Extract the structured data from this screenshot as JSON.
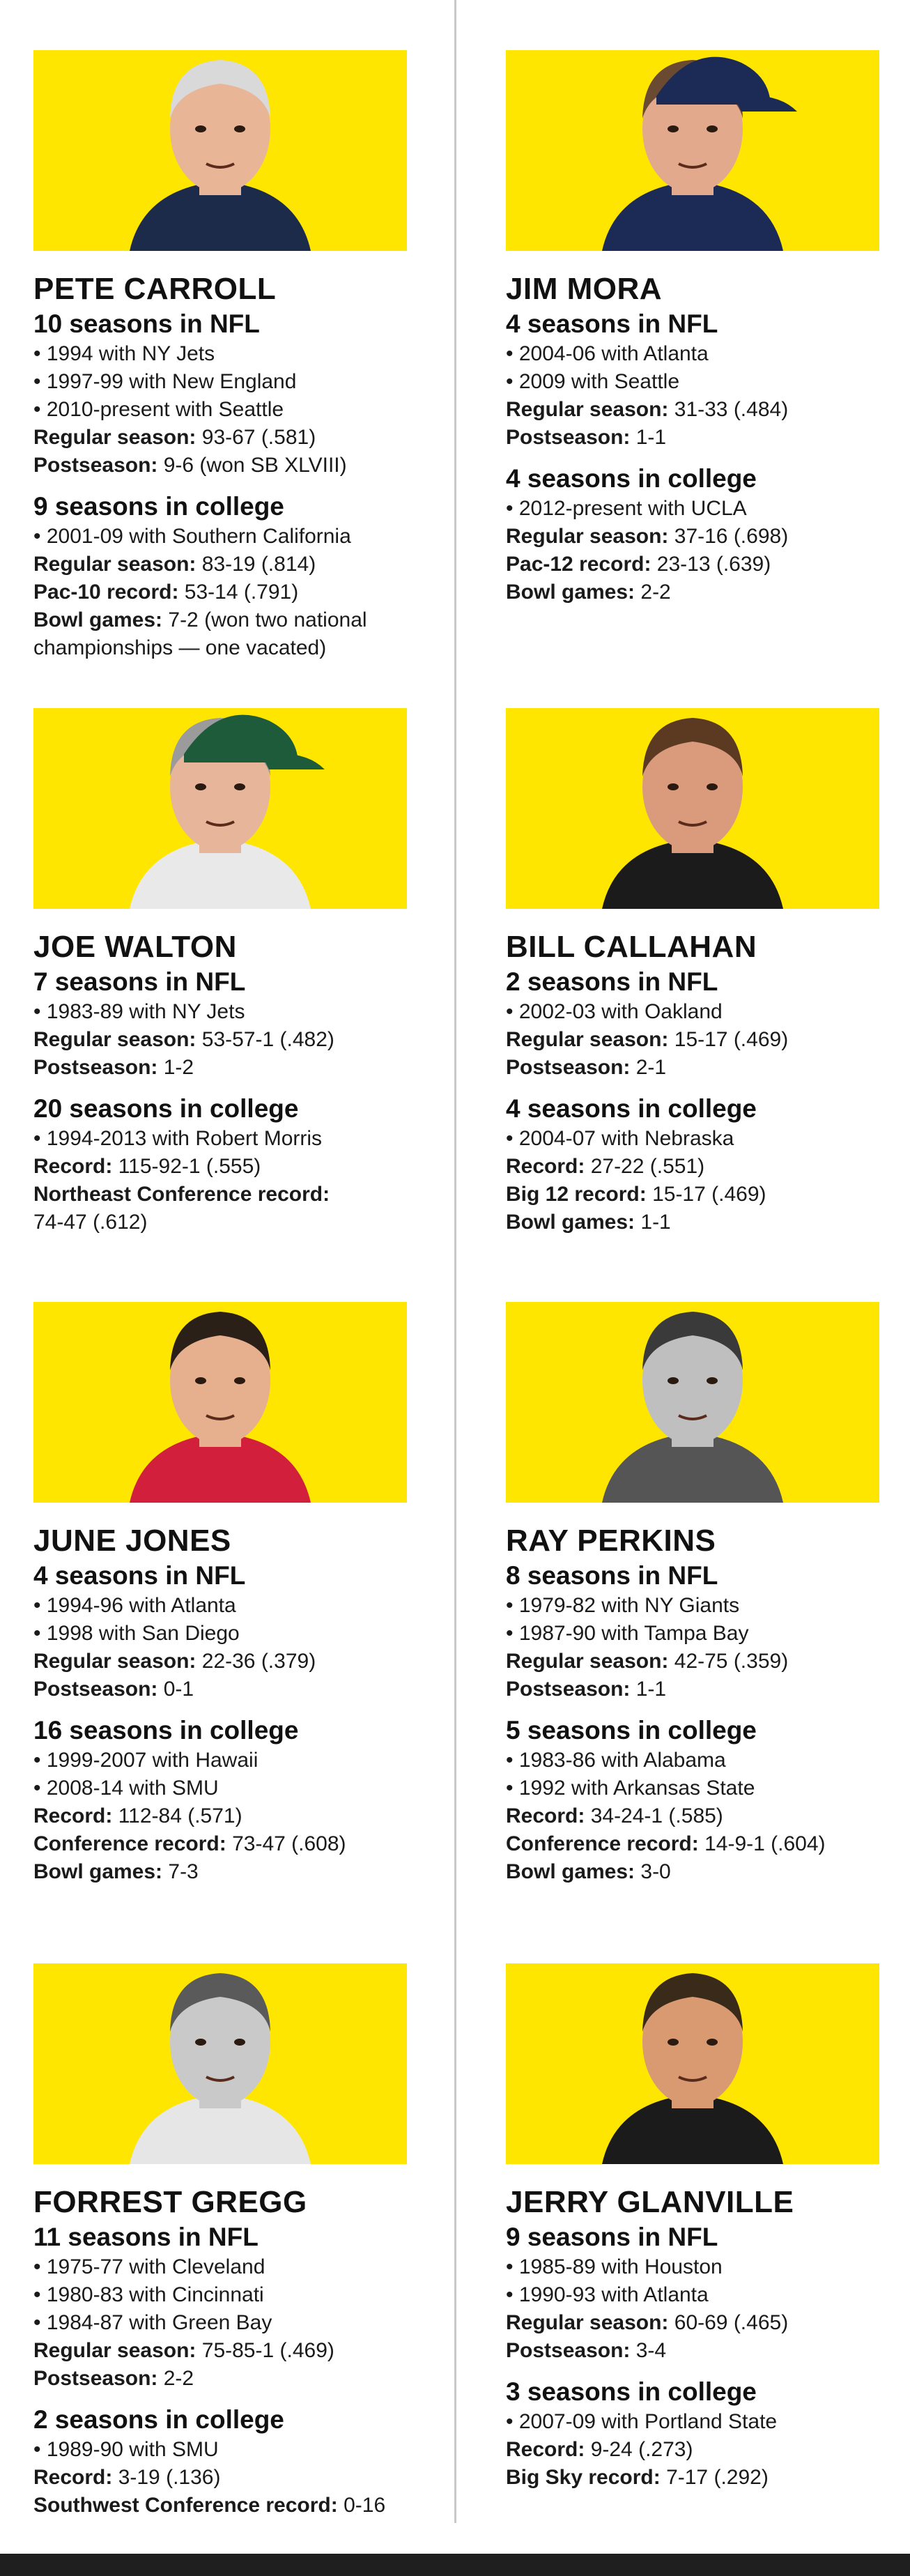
{
  "coaches": [
    {
      "name": "PETE CARROLL",
      "sections": [
        {
          "title": "10 seasons in NFL",
          "lines": [
            {
              "bullet": true,
              "text": "1994 with NY Jets"
            },
            {
              "bullet": true,
              "text": "1997-99 with New England"
            },
            {
              "bullet": true,
              "text": "2010-present with Seattle"
            },
            {
              "label": "Regular season:",
              "text": " 93-67 (.581)"
            },
            {
              "label": "Postseason:",
              "text": " 9-6 (won SB XLVIII)"
            }
          ]
        },
        {
          "title": "9 seasons in college",
          "lines": [
            {
              "bullet": true,
              "text": "2001-09 with Southern California"
            },
            {
              "label": "Regular season:",
              "text": " 83-19 (.814)"
            },
            {
              "label": "Pac-10 record:",
              "text": " 53-14 (.791)"
            },
            {
              "label": "Bowl games:",
              "text": " 7-2 (won two national"
            },
            {
              "text": "championships — one vacated)"
            }
          ]
        }
      ]
    },
    {
      "name": "JIM MORA",
      "sections": [
        {
          "title": "4 seasons in NFL",
          "lines": [
            {
              "bullet": true,
              "text": "2004-06 with Atlanta"
            },
            {
              "bullet": true,
              "text": "2009 with Seattle"
            },
            {
              "label": "Regular season:",
              "text": " 31-33 (.484)"
            },
            {
              "label": "Postseason:",
              "text": " 1-1"
            }
          ]
        },
        {
          "title": "4 seasons in college",
          "lines": [
            {
              "bullet": true,
              "text": "2012-present with UCLA"
            },
            {
              "label": "Regular season:",
              "text": " 37-16 (.698)"
            },
            {
              "label": "Pac-12 record:",
              "text": " 23-13 (.639)"
            },
            {
              "label": "Bowl games:",
              "text": " 2-2"
            }
          ]
        }
      ]
    },
    {
      "name": "JOE WALTON",
      "sections": [
        {
          "title": "7 seasons in NFL",
          "lines": [
            {
              "bullet": true,
              "text": "1983-89 with NY Jets"
            },
            {
              "label": "Regular season:",
              "text": " 53-57-1 (.482)"
            },
            {
              "label": "Postseason:",
              "text": " 1-2"
            }
          ]
        },
        {
          "title": "20 seasons in college",
          "lines": [
            {
              "bullet": true,
              "text": "1994-2013 with Robert Morris"
            },
            {
              "label": "Record:",
              "text": " 115-92-1 (.555)"
            },
            {
              "label": "Northeast Conference record:",
              "text": ""
            },
            {
              "text": "74-47 (.612)"
            }
          ]
        }
      ]
    },
    {
      "name": "BILL CALLAHAN",
      "sections": [
        {
          "title": "2 seasons in NFL",
          "lines": [
            {
              "bullet": true,
              "text": "2002-03 with Oakland"
            },
            {
              "label": "Regular season:",
              "text": " 15-17 (.469)"
            },
            {
              "label": "Postseason:",
              "text": " 2-1"
            }
          ]
        },
        {
          "title": "4 seasons in college",
          "lines": [
            {
              "bullet": true,
              "text": "2004-07 with Nebraska"
            },
            {
              "label": "Record:",
              "text": " 27-22 (.551)"
            },
            {
              "label": "Big 12 record:",
              "text": " 15-17 (.469)"
            },
            {
              "label": "Bowl games:",
              "text": " 1-1"
            }
          ]
        }
      ]
    },
    {
      "name": "JUNE JONES",
      "sections": [
        {
          "title": "4 seasons in NFL",
          "lines": [
            {
              "bullet": true,
              "text": "1994-96 with Atlanta"
            },
            {
              "bullet": true,
              "text": "1998 with San Diego"
            },
            {
              "label": "Regular season:",
              "text": " 22-36 (.379)"
            },
            {
              "label": "Postseason:",
              "text": " 0-1"
            }
          ]
        },
        {
          "title": "16 seasons in college",
          "lines": [
            {
              "bullet": true,
              "text": "1999-2007 with Hawaii"
            },
            {
              "bullet": true,
              "text": "2008-14 with SMU"
            },
            {
              "label": "Record:",
              "text": " 112-84 (.571)"
            },
            {
              "label": "Conference record:",
              "text": " 73-47 (.608)"
            },
            {
              "label": "Bowl games:",
              "text": " 7-3"
            }
          ]
        }
      ]
    },
    {
      "name": "RAY PERKINS",
      "sections": [
        {
          "title": "8 seasons in NFL",
          "lines": [
            {
              "bullet": true,
              "text": "1979-82 with NY Giants"
            },
            {
              "bullet": true,
              "text": "1987-90 with Tampa Bay"
            },
            {
              "label": "Regular season:",
              "text": " 42-75 (.359)"
            },
            {
              "label": "Postseason:",
              "text": " 1-1"
            }
          ]
        },
        {
          "title": "5 seasons in college",
          "lines": [
            {
              "bullet": true,
              "text": "1983-86 with Alabama"
            },
            {
              "bullet": true,
              "text": "1992 with Arkansas State"
            },
            {
              "label": "Record:",
              "text": " 34-24-1 (.585)"
            },
            {
              "label": "Conference record:",
              "text": " 14-9-1 (.604)"
            },
            {
              "label": "Bowl games:",
              "text": " 3-0"
            }
          ]
        }
      ]
    },
    {
      "name": "FORREST GREGG",
      "sections": [
        {
          "title": "11 seasons in NFL",
          "lines": [
            {
              "bullet": true,
              "text": "1975-77 with Cleveland"
            },
            {
              "bullet": true,
              "text": "1980-83 with Cincinnati"
            },
            {
              "bullet": true,
              "text": "1984-87 with Green Bay"
            },
            {
              "label": "Regular season:",
              "text": " 75-85-1 (.469)"
            },
            {
              "label": "Postseason:",
              "text": " 2-2"
            }
          ]
        },
        {
          "title": "2 seasons in college",
          "lines": [
            {
              "bullet": true,
              "text": "1989-90 with SMU"
            },
            {
              "label": "Record:",
              "text": " 3-19 (.136)"
            },
            {
              "label": "Southwest Conference record:",
              "text": " 0-16"
            }
          ]
        }
      ]
    },
    {
      "name": "JERRY GLANVILLE",
      "sections": [
        {
          "title": "9 seasons in NFL",
          "lines": [
            {
              "bullet": true,
              "text": "1985-89 with Houston"
            },
            {
              "bullet": true,
              "text": "1990-93 with Atlanta"
            },
            {
              "label": "Regular season:",
              "text": " 60-69 (.465)"
            },
            {
              "label": "Postseason:",
              "text": " 3-4"
            }
          ]
        },
        {
          "title": "3 seasons in college",
          "lines": [
            {
              "bullet": true,
              "text": "2007-09 with Portland State"
            },
            {
              "label": "Record:",
              "text": " 9-24 (.273)"
            },
            {
              "label": "Big Sky record:",
              "text": " 7-17 (.292)"
            }
          ]
        }
      ]
    }
  ],
  "colors": {
    "panel": "#ffe600",
    "divider": "#c8c8c8",
    "footer": "#1f1f1f",
    "text": "#111111"
  }
}
